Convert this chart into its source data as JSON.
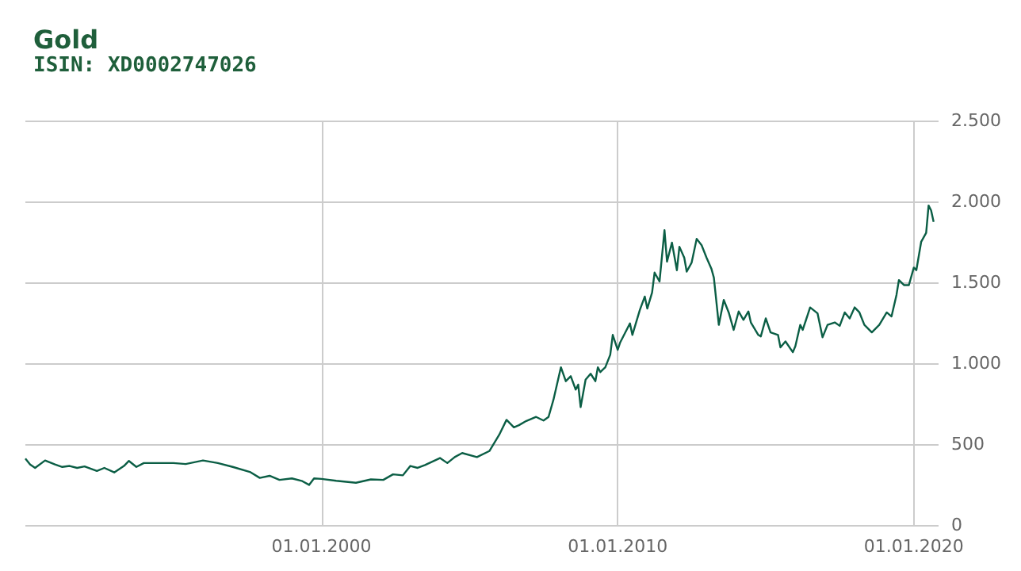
{
  "chart_data": {
    "type": "line",
    "title": "Gold",
    "subtitle": "ISIN: XD0002747026",
    "x": [
      "1990-01",
      "1990-03",
      "1990-05",
      "1990-09",
      "1991-01",
      "1991-04",
      "1991-07",
      "1991-10",
      "1992-01",
      "1992-06",
      "1992-09",
      "1993-01",
      "1993-05",
      "1993-07",
      "1993-10",
      "1994-01",
      "1995-01",
      "1995-06",
      "1996-01",
      "1996-07",
      "1997-01",
      "1997-08",
      "1997-12",
      "1998-04",
      "1998-08",
      "1999-01",
      "1999-05",
      "1999-08",
      "1999-10",
      "2000-01",
      "2000-07",
      "2001-03",
      "2001-09",
      "2002-02",
      "2002-06",
      "2002-10",
      "2003-01",
      "2003-04",
      "2003-07",
      "2004-01",
      "2004-04",
      "2004-07",
      "2004-10",
      "2005-04",
      "2005-09",
      "2006-01",
      "2006-04",
      "2006-07",
      "2006-09",
      "2006-12",
      "2007-04",
      "2007-07",
      "2007-09",
      "2007-11",
      "2008-02",
      "2008-04",
      "2008-06",
      "2008-08",
      "2008-09",
      "2008-10",
      "2008-12",
      "2009-02",
      "2009-04",
      "2009-05",
      "2009-06",
      "2009-08",
      "2009-10",
      "2009-11",
      "2010-01",
      "2010-02",
      "2010-06",
      "2010-07",
      "2010-10",
      "2010-12",
      "2011-01",
      "2011-03",
      "2011-04",
      "2011-06",
      "2011-08",
      "2011-09",
      "2011-11",
      "2012-01",
      "2012-02",
      "2012-04",
      "2012-05",
      "2012-07",
      "2012-09",
      "2012-11",
      "2013-01",
      "2013-03",
      "2013-04",
      "2013-06",
      "2013-08",
      "2013-10",
      "2013-12",
      "2014-02",
      "2014-04",
      "2014-06",
      "2014-07",
      "2014-10",
      "2014-11",
      "2015-01",
      "2015-03",
      "2015-06",
      "2015-07",
      "2015-09",
      "2015-12",
      "2016-01",
      "2016-03",
      "2016-04",
      "2016-07",
      "2016-10",
      "2016-12",
      "2017-02",
      "2017-05",
      "2017-07",
      "2017-09",
      "2017-11",
      "2018-01",
      "2018-03",
      "2018-05",
      "2018-08",
      "2018-11",
      "2019-02",
      "2019-04",
      "2019-06",
      "2019-07",
      "2019-09",
      "2019-11",
      "2020-01",
      "2020-02",
      "2020-04",
      "2020-06",
      "2020-07",
      "2020-08",
      "2020-09"
    ],
    "series": [
      {
        "color": "#0b5e45",
        "values": [
          411,
          374,
          353,
          399,
          374,
          359,
          365,
          353,
          362,
          334,
          353,
          325,
          365,
          396,
          359,
          383,
          383,
          377,
          399,
          383,
          359,
          328,
          291,
          304,
          279,
          288,
          273,
          248,
          288,
          285,
          273,
          261,
          282,
          279,
          313,
          307,
          365,
          353,
          371,
          414,
          383,
          420,
          445,
          420,
          457,
          558,
          650,
          604,
          617,
          643,
          668,
          646,
          668,
          775,
          975,
          889,
          920,
          837,
          868,
          729,
          898,
          935,
          889,
          975,
          945,
          975,
          1052,
          1175,
          1083,
          1129,
          1246,
          1175,
          1329,
          1412,
          1338,
          1437,
          1560,
          1505,
          1822,
          1628,
          1745,
          1575,
          1720,
          1652,
          1566,
          1622,
          1769,
          1729,
          1652,
          1585,
          1529,
          1237,
          1391,
          1314,
          1206,
          1320,
          1268,
          1320,
          1252,
          1175,
          1166,
          1277,
          1191,
          1175,
          1098,
          1135,
          1068,
          1105,
          1237,
          1206,
          1345,
          1308,
          1160,
          1237,
          1252,
          1231,
          1314,
          1277,
          1345,
          1314,
          1237,
          1191,
          1237,
          1314,
          1289,
          1422,
          1514,
          1483,
          1483,
          1591,
          1575,
          1751,
          1806,
          1975,
          1945,
          1874
        ]
      }
    ],
    "xlim": [
      "1990-01-01",
      "2020-11-01"
    ],
    "xticks": [
      {
        "value": "2000-01-01",
        "label": "01.01.2000"
      },
      {
        "value": "2010-01-01",
        "label": "01.01.2010"
      },
      {
        "value": "2020-01-01",
        "label": "01.01.2020"
      }
    ],
    "ylim": [
      0,
      2500
    ],
    "yticks": [
      0,
      500,
      {
        "value": 1000,
        "label": "1.000"
      },
      {
        "value": 1500,
        "label": "1.500"
      },
      {
        "value": 2000,
        "label": "2.000"
      },
      {
        "value": 2500,
        "label": "2.500"
      }
    ],
    "grid": true,
    "marker": "none",
    "line_style": "solid"
  }
}
